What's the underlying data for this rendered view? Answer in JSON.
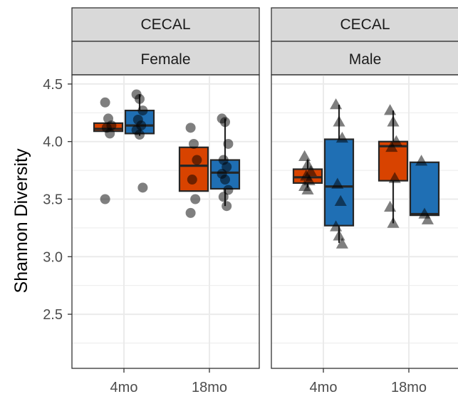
{
  "chart_data": {
    "type": "box",
    "ylabel": "Shannon Diversity",
    "xlabel": "",
    "ylim": [
      2.03,
      4.58
    ],
    "yticks": [
      2.5,
      3.0,
      3.5,
      4.0,
      4.5
    ],
    "ytick_labels": [
      "2.5",
      "3.0",
      "3.5",
      "4.0",
      "4.5"
    ],
    "categories": [
      "4mo",
      "18mo"
    ],
    "grid": true,
    "colors": {
      "orange": "#d84300",
      "blue": "#1f6fb4"
    },
    "panels": [
      {
        "strip_top": "CECAL",
        "strip_bottom": "Female",
        "point_shape": "circle",
        "boxes": [
          {
            "category": "4mo",
            "color": "orange",
            "q1": 4.09,
            "median": 4.11,
            "q3": 4.16,
            "whisker_low": 4.09,
            "whisker_high": 4.16,
            "points": [
              4.34,
              4.2,
              4.14,
              4.12,
              4.07,
              3.5
            ]
          },
          {
            "category": "4mo",
            "color": "blue",
            "q1": 4.07,
            "median": 4.14,
            "q3": 4.27,
            "whisker_low": 4.05,
            "whisker_high": 4.41,
            "points": [
              4.41,
              4.37,
              4.27,
              4.19,
              4.14,
              4.1,
              4.06,
              3.6
            ]
          },
          {
            "category": "18mo",
            "color": "orange",
            "q1": 3.57,
            "median": 3.79,
            "q3": 3.95,
            "whisker_low": 3.57,
            "whisker_high": 3.95,
            "points": [
              4.12,
              3.98,
              3.84,
              3.67,
              3.5,
              3.38
            ]
          },
          {
            "category": "18mo",
            "color": "blue",
            "q1": 3.59,
            "median": 3.73,
            "q3": 3.84,
            "whisker_low": 3.44,
            "whisker_high": 4.2,
            "points": [
              4.2,
              4.17,
              3.98,
              3.84,
              3.78,
              3.72,
              3.67,
              3.58,
              3.52,
              3.44
            ]
          }
        ]
      },
      {
        "strip_top": "CECAL",
        "strip_bottom": "Male",
        "point_shape": "triangle",
        "boxes": [
          {
            "category": "4mo",
            "color": "orange",
            "q1": 3.64,
            "median": 3.69,
            "q3": 3.76,
            "whisker_low": 3.6,
            "whisker_high": 3.84,
            "points": [
              3.87,
              3.8,
              3.74,
              3.7,
              3.66,
              3.61,
              3.58
            ]
          },
          {
            "category": "4mo",
            "color": "blue",
            "q1": 3.27,
            "median": 3.61,
            "q3": 4.02,
            "whisker_low": 3.12,
            "whisker_high": 4.32,
            "points": [
              4.32,
              4.17,
              4.03,
              3.63,
              3.48,
              3.26,
              3.18,
              3.11
            ]
          },
          {
            "category": "18mo",
            "color": "orange",
            "q1": 3.66,
            "median": 3.96,
            "q3": 4.0,
            "whisker_low": 3.29,
            "whisker_high": 4.27,
            "points": [
              4.27,
              4.17,
              4.0,
              3.95,
              3.68,
              3.43,
              3.29
            ]
          },
          {
            "category": "18mo",
            "color": "blue",
            "q1": 3.36,
            "median": 3.37,
            "q3": 3.82,
            "whisker_low": 3.36,
            "whisker_high": 3.82,
            "points": [
              3.83,
              3.37,
              3.32
            ]
          }
        ]
      }
    ]
  }
}
